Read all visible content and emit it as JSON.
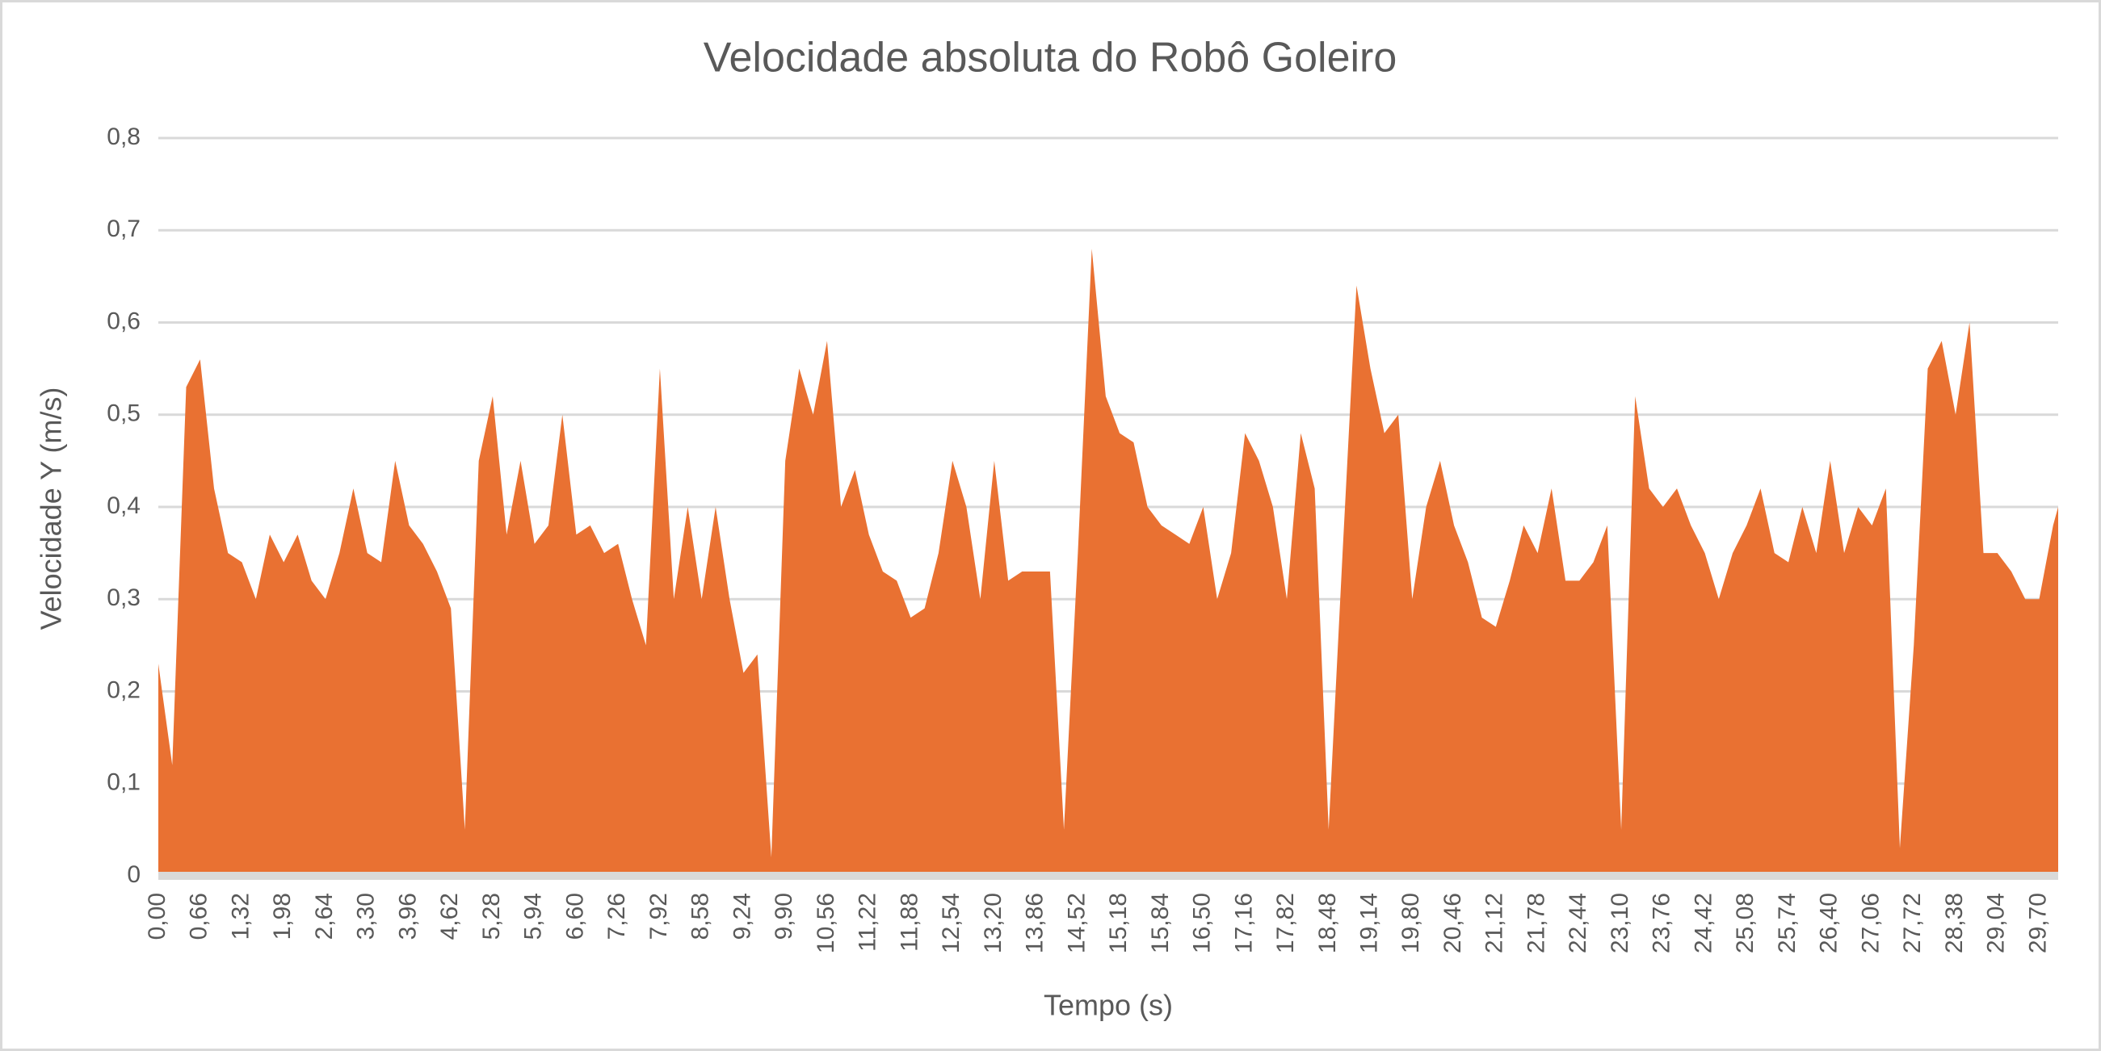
{
  "chart_data": {
    "type": "area",
    "title": "Velocidade absoluta do Robô Goleiro",
    "x_label": "Tempo (s)",
    "y_label": "Velocidade Y (m/s)",
    "color": "#E97132",
    "grid": true,
    "x": [
      0,
      0.22,
      0.44,
      0.66,
      0.88,
      1.1,
      1.32,
      1.54,
      1.76,
      1.98,
      2.2,
      2.42,
      2.64,
      2.86,
      3.08,
      3.3,
      3.52,
      3.74,
      3.96,
      4.18,
      4.4,
      4.62,
      4.84,
      5.06,
      5.28,
      5.5,
      5.72,
      5.94,
      6.16,
      6.38,
      6.6,
      6.82,
      7.04,
      7.26,
      7.48,
      7.7,
      7.92,
      8.14,
      8.36,
      8.58,
      8.8,
      9.02,
      9.24,
      9.46,
      9.68,
      9.9,
      10.12,
      10.34,
      10.56,
      10.78,
      11,
      11.22,
      11.44,
      11.66,
      11.88,
      12.1,
      12.32,
      12.54,
      12.76,
      12.98,
      13.2,
      13.42,
      13.64,
      13.86,
      14.08,
      14.3,
      14.52,
      14.74,
      14.96,
      15.18,
      15.4,
      15.62,
      15.84,
      16.06,
      16.28,
      16.5,
      16.72,
      16.94,
      17.16,
      17.38,
      17.6,
      17.82,
      18.04,
      18.26,
      18.48,
      18.7,
      18.92,
      19.14,
      19.36,
      19.58,
      19.8,
      20.02,
      20.24,
      20.46,
      20.68,
      20.9,
      21.12,
      21.34,
      21.56,
      21.78,
      22,
      22.22,
      22.44,
      22.66,
      22.88,
      23.1,
      23.32,
      23.54,
      23.76,
      23.98,
      24.2,
      24.42,
      24.64,
      24.86,
      25.08,
      25.3,
      25.52,
      25.74,
      25.96,
      26.18,
      26.4,
      26.62,
      26.84,
      27.06,
      27.28,
      27.5,
      27.72,
      27.94,
      28.16,
      28.38,
      28.6,
      28.82,
      29.04,
      29.26,
      29.48,
      29.7,
      29.92,
      30.0
    ],
    "values": [
      0.23,
      0.12,
      0.53,
      0.56,
      0.42,
      0.35,
      0.34,
      0.3,
      0.37,
      0.34,
      0.37,
      0.32,
      0.3,
      0.35,
      0.42,
      0.35,
      0.34,
      0.45,
      0.38,
      0.36,
      0.33,
      0.29,
      0.05,
      0.45,
      0.52,
      0.37,
      0.45,
      0.36,
      0.38,
      0.5,
      0.37,
      0.38,
      0.35,
      0.36,
      0.3,
      0.25,
      0.55,
      0.3,
      0.4,
      0.3,
      0.4,
      0.3,
      0.22,
      0.24,
      0.02,
      0.45,
      0.55,
      0.5,
      0.58,
      0.4,
      0.44,
      0.37,
      0.33,
      0.32,
      0.28,
      0.29,
      0.35,
      0.45,
      0.4,
      0.3,
      0.45,
      0.32,
      0.33,
      0.33,
      0.33,
      0.05,
      0.35,
      0.68,
      0.52,
      0.48,
      0.47,
      0.4,
      0.38,
      0.37,
      0.36,
      0.4,
      0.3,
      0.35,
      0.48,
      0.45,
      0.4,
      0.3,
      0.48,
      0.42,
      0.05,
      0.35,
      0.64,
      0.55,
      0.48,
      0.5,
      0.3,
      0.4,
      0.45,
      0.38,
      0.34,
      0.28,
      0.27,
      0.32,
      0.38,
      0.35,
      0.42,
      0.32,
      0.32,
      0.34,
      0.38,
      0.05,
      0.52,
      0.42,
      0.4,
      0.42,
      0.38,
      0.35,
      0.3,
      0.35,
      0.38,
      0.42,
      0.35,
      0.34,
      0.4,
      0.35,
      0.45,
      0.35,
      0.4,
      0.38,
      0.42,
      0.03,
      0.25,
      0.55,
      0.58,
      0.5,
      0.6,
      0.35,
      0.35,
      0.33,
      0.3,
      0.3,
      0.38,
      0.4
    ],
    "xlim": [
      0,
      30.0
    ],
    "xticks": [
      {
        "value": 0,
        "label": "0,00"
      },
      {
        "value": 0.66,
        "label": "0,66"
      },
      {
        "value": 1.32,
        "label": "1,32"
      },
      {
        "value": 1.98,
        "label": "1,98"
      },
      {
        "value": 2.64,
        "label": "2,64"
      },
      {
        "value": 3.3,
        "label": "3,30"
      },
      {
        "value": 3.96,
        "label": "3,96"
      },
      {
        "value": 4.62,
        "label": "4,62"
      },
      {
        "value": 5.28,
        "label": "5,28"
      },
      {
        "value": 5.94,
        "label": "5,94"
      },
      {
        "value": 6.6,
        "label": "6,60"
      },
      {
        "value": 7.26,
        "label": "7,26"
      },
      {
        "value": 7.92,
        "label": "7,92"
      },
      {
        "value": 8.58,
        "label": "8,58"
      },
      {
        "value": 9.24,
        "label": "9,24"
      },
      {
        "value": 9.9,
        "label": "9,90"
      },
      {
        "value": 10.56,
        "label": "10,56"
      },
      {
        "value": 11.22,
        "label": "11,22"
      },
      {
        "value": 11.88,
        "label": "11,88"
      },
      {
        "value": 12.54,
        "label": "12,54"
      },
      {
        "value": 13.2,
        "label": "13,20"
      },
      {
        "value": 13.86,
        "label": "13,86"
      },
      {
        "value": 14.52,
        "label": "14,52"
      },
      {
        "value": 15.18,
        "label": "15,18"
      },
      {
        "value": 15.84,
        "label": "15,84"
      },
      {
        "value": 16.5,
        "label": "16,50"
      },
      {
        "value": 17.16,
        "label": "17,16"
      },
      {
        "value": 17.82,
        "label": "17,82"
      },
      {
        "value": 18.48,
        "label": "18,48"
      },
      {
        "value": 19.14,
        "label": "19,14"
      },
      {
        "value": 19.8,
        "label": "19,80"
      },
      {
        "value": 20.46,
        "label": "20,46"
      },
      {
        "value": 21.12,
        "label": "21,12"
      },
      {
        "value": 21.78,
        "label": "21,78"
      },
      {
        "value": 22.44,
        "label": "22,44"
      },
      {
        "value": 23.1,
        "label": "23,10"
      },
      {
        "value": 23.76,
        "label": "23,76"
      },
      {
        "value": 24.42,
        "label": "24,42"
      },
      {
        "value": 25.08,
        "label": "25,08"
      },
      {
        "value": 25.74,
        "label": "25,74"
      },
      {
        "value": 26.4,
        "label": "26,40"
      },
      {
        "value": 27.06,
        "label": "27,06"
      },
      {
        "value": 27.72,
        "label": "27,72"
      },
      {
        "value": 28.38,
        "label": "28,38"
      },
      {
        "value": 29.04,
        "label": "29,04"
      },
      {
        "value": 29.7,
        "label": "29,70"
      }
    ],
    "ylim": [
      0,
      0.8
    ],
    "yticks": [
      0,
      {
        "value": 0.1,
        "label": "0,1"
      },
      {
        "value": 0.2,
        "label": "0,2"
      },
      {
        "value": 0.3,
        "label": "0,3"
      },
      {
        "value": 0.4,
        "label": "0,4"
      },
      {
        "value": 0.5,
        "label": "0,5"
      },
      {
        "value": 0.6,
        "label": "0,6"
      },
      {
        "value": 0.7,
        "label": "0,7"
      },
      {
        "value": 0.8,
        "label": "0,8"
      }
    ]
  }
}
